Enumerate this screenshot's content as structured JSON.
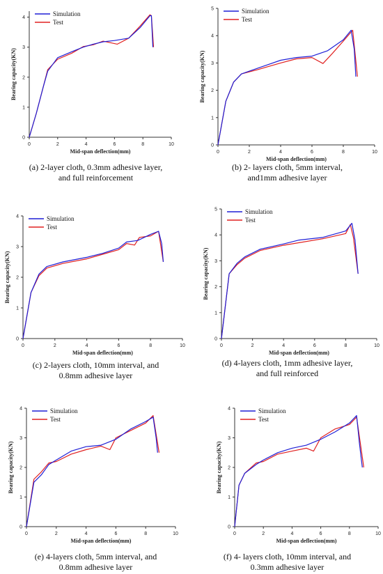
{
  "colors": {
    "simulation": "#1f1fd6",
    "test": "#e02020",
    "axis": "#333333"
  },
  "chart_data": [
    {
      "type": "line",
      "caption": "(a) 2-layer cloth, 0.3mm adhesive layer, and full reinforcement",
      "caption_lines": [
        "(a) 2-layer cloth, 0.3mm adhesive layer,",
        "and full reinforcement"
      ],
      "xlabel": "Mid-span deflection(mm)",
      "ylabel": "Bearing capacity(KN)",
      "xlim": [
        0,
        10
      ],
      "ylim": [
        0,
        4.2
      ],
      "xticks": [
        0,
        2,
        4,
        6,
        8,
        10
      ],
      "yticks": [
        0,
        1,
        2,
        3,
        4
      ],
      "legend": "top-left",
      "series": [
        {
          "name": "Simulation",
          "x": [
            0,
            0.5,
            1.0,
            1.3,
            2.0,
            3.0,
            3.8,
            4.5,
            5.2,
            6.0,
            7.0,
            7.8,
            8.5,
            8.6,
            8.7
          ],
          "y": [
            0,
            0.8,
            1.7,
            2.2,
            2.65,
            2.85,
            3.0,
            3.1,
            3.18,
            3.22,
            3.3,
            3.65,
            4.05,
            4.05,
            3.0
          ]
        },
        {
          "name": "Test",
          "x": [
            0,
            0.5,
            1.0,
            1.3,
            2.0,
            3.0,
            3.8,
            4.5,
            5.2,
            6.2,
            7.0,
            7.8,
            8.5,
            8.6,
            8.75
          ],
          "y": [
            0,
            0.8,
            1.7,
            2.25,
            2.6,
            2.8,
            3.02,
            3.08,
            3.2,
            3.1,
            3.3,
            3.7,
            4.08,
            4.05,
            3.0
          ]
        }
      ]
    },
    {
      "type": "line",
      "caption": "(b) 2- layers cloth, 5mm interval, and1mm adhesive layer",
      "caption_lines": [
        "(b) 2- layers cloth, 5mm interval,",
        "and1mm adhesive layer"
      ],
      "xlabel": "Mid-span deflection(mm)",
      "ylabel": "Bearing capacity(KN)",
      "xlim": [
        0,
        10
      ],
      "ylim": [
        0,
        5
      ],
      "xticks": [
        0,
        2,
        4,
        6,
        8,
        10
      ],
      "yticks": [
        0,
        1,
        2,
        3,
        4,
        5
      ],
      "legend": "top-left",
      "series": [
        {
          "name": "Simulation",
          "x": [
            0,
            0.5,
            1.0,
            1.5,
            2.5,
            4.0,
            5.0,
            6.0,
            7.0,
            8.0,
            8.5,
            8.7,
            8.8
          ],
          "y": [
            0,
            1.6,
            2.3,
            2.6,
            2.8,
            3.1,
            3.2,
            3.25,
            3.45,
            3.85,
            4.2,
            3.5,
            2.5
          ]
        },
        {
          "name": "Test",
          "x": [
            0,
            0.5,
            1.0,
            1.5,
            2.5,
            4.0,
            5.0,
            6.0,
            6.7,
            7.3,
            8.0,
            8.6,
            8.9
          ],
          "y": [
            0,
            1.6,
            2.3,
            2.6,
            2.75,
            3.0,
            3.15,
            3.2,
            2.98,
            3.35,
            3.8,
            4.2,
            2.5
          ]
        }
      ]
    },
    {
      "type": "line",
      "caption": "(c) 2-layers cloth, 10mm interval, and 0.8mm adhesive layer",
      "caption_lines": [
        "(c) 2-layers cloth, 10mm interval, and",
        "0.8mm adhesive layer"
      ],
      "xlabel": "Mid-span deflection(mm)",
      "ylabel": "Bearing capacity(KN)",
      "xlim": [
        0,
        10
      ],
      "ylim": [
        0,
        4
      ],
      "xticks": [
        0,
        2,
        4,
        6,
        8,
        10
      ],
      "yticks": [
        0,
        1,
        2,
        3,
        4
      ],
      "legend": "top-left",
      "series": [
        {
          "name": "Simulation",
          "x": [
            0,
            0.5,
            1.0,
            1.5,
            2.5,
            4.0,
            5.0,
            6.0,
            6.5,
            7.2,
            8.0,
            8.5,
            8.7,
            8.8
          ],
          "y": [
            0,
            1.5,
            2.1,
            2.35,
            2.5,
            2.65,
            2.78,
            2.95,
            3.15,
            3.2,
            3.4,
            3.5,
            3.1,
            2.5
          ]
        },
        {
          "name": "Test",
          "x": [
            0,
            0.5,
            1.0,
            1.5,
            2.5,
            4.0,
            5.0,
            6.0,
            6.5,
            7.0,
            7.3,
            8.0,
            8.5,
            8.8
          ],
          "y": [
            0,
            1.5,
            2.05,
            2.3,
            2.45,
            2.6,
            2.75,
            2.9,
            3.1,
            3.05,
            3.3,
            3.35,
            3.5,
            2.5
          ]
        }
      ]
    },
    {
      "type": "line",
      "caption": "(d) 4-layers cloth, 1mm adhesive layer, and full reinforced",
      "caption_lines": [
        "(d) 4-layers cloth, 1mm adhesive layer,",
        "and full reinforced"
      ],
      "xlabel": "Mid-span deflection(mm)",
      "ylabel": "Bearing capacity(KN)",
      "xlim": [
        0,
        10
      ],
      "ylim": [
        0,
        5
      ],
      "xticks": [
        0,
        2,
        4,
        6,
        8,
        10
      ],
      "yticks": [
        0,
        1,
        2,
        3,
        4,
        5
      ],
      "legend": "top-left",
      "series": [
        {
          "name": "Simulation",
          "x": [
            0,
            0.5,
            1.0,
            1.5,
            2.5,
            4.0,
            5.0,
            6.5,
            8.0,
            8.4,
            8.6,
            8.8
          ],
          "y": [
            0,
            2.5,
            2.9,
            3.15,
            3.45,
            3.65,
            3.8,
            3.9,
            4.15,
            4.45,
            3.8,
            2.5
          ]
        },
        {
          "name": "Test",
          "x": [
            0,
            0.5,
            1.0,
            1.5,
            2.5,
            4.0,
            5.0,
            6.5,
            8.0,
            8.3,
            8.5,
            8.8
          ],
          "y": [
            0,
            2.5,
            2.85,
            3.1,
            3.4,
            3.6,
            3.7,
            3.85,
            4.05,
            4.4,
            3.9,
            2.5
          ]
        }
      ]
    },
    {
      "type": "line",
      "caption": "(e) 4-layers cloth, 5mm interval, and 0.8mm adhesive layer",
      "caption_lines": [
        "(e) 4-layers cloth, 5mm interval, and",
        "0.8mm adhesive layer"
      ],
      "xlabel": "Mid-span deflection(mm)",
      "ylabel": "Bearing capacity(KN)",
      "xlim": [
        0,
        10
      ],
      "ylim": [
        0,
        4
      ],
      "xticks": [
        0,
        2,
        4,
        6,
        8,
        10
      ],
      "yticks": [
        0,
        1,
        2,
        3,
        4
      ],
      "legend": "top-left",
      "series": [
        {
          "name": "Simulation",
          "x": [
            0,
            0.5,
            1.0,
            1.5,
            2.0,
            3.0,
            4.0,
            5.0,
            6.0,
            7.0,
            8.0,
            8.5,
            8.7,
            8.8
          ],
          "y": [
            0,
            1.5,
            1.75,
            2.1,
            2.25,
            2.55,
            2.7,
            2.75,
            2.95,
            3.3,
            3.55,
            3.7,
            3.0,
            2.5
          ]
        },
        {
          "name": "Test",
          "x": [
            0,
            0.5,
            1.0,
            1.5,
            2.0,
            3.0,
            4.0,
            5.0,
            5.6,
            6.0,
            7.0,
            8.0,
            8.5,
            8.9
          ],
          "y": [
            0,
            1.6,
            1.85,
            2.15,
            2.2,
            2.45,
            2.6,
            2.72,
            2.6,
            3.0,
            3.25,
            3.5,
            3.75,
            2.5
          ]
        }
      ]
    },
    {
      "type": "line",
      "caption": "(f) 4- layers cloth, 10mm interval, and 0.3mm adhesive layer",
      "caption_lines": [
        "(f) 4- layers cloth, 10mm interval, and",
        "0.3mm adhesive layer"
      ],
      "xlabel": "Mid-span deflection(mm)",
      "ylabel": "Bearing capacity(KN)",
      "xlim": [
        0,
        10
      ],
      "ylim": [
        0,
        4
      ],
      "xticks": [
        0,
        2,
        4,
        6,
        8,
        10
      ],
      "yticks": [
        0,
        1,
        2,
        3,
        4
      ],
      "legend": "top-left",
      "series": [
        {
          "name": "Simulation",
          "x": [
            0,
            0.3,
            0.7,
            1.5,
            2.0,
            3.0,
            4.0,
            5.0,
            6.0,
            7.0,
            8.0,
            8.5,
            8.7,
            8.9
          ],
          "y": [
            0,
            1.4,
            1.8,
            2.1,
            2.25,
            2.5,
            2.65,
            2.75,
            2.95,
            3.2,
            3.5,
            3.75,
            2.8,
            2.0
          ]
        },
        {
          "name": "Test",
          "x": [
            0,
            0.3,
            0.7,
            1.5,
            2.0,
            3.0,
            4.0,
            5.0,
            5.5,
            6.0,
            7.0,
            8.0,
            8.5,
            9.0
          ],
          "y": [
            0,
            1.4,
            1.8,
            2.15,
            2.2,
            2.45,
            2.55,
            2.65,
            2.55,
            3.0,
            3.3,
            3.45,
            3.7,
            2.0
          ]
        }
      ]
    }
  ]
}
